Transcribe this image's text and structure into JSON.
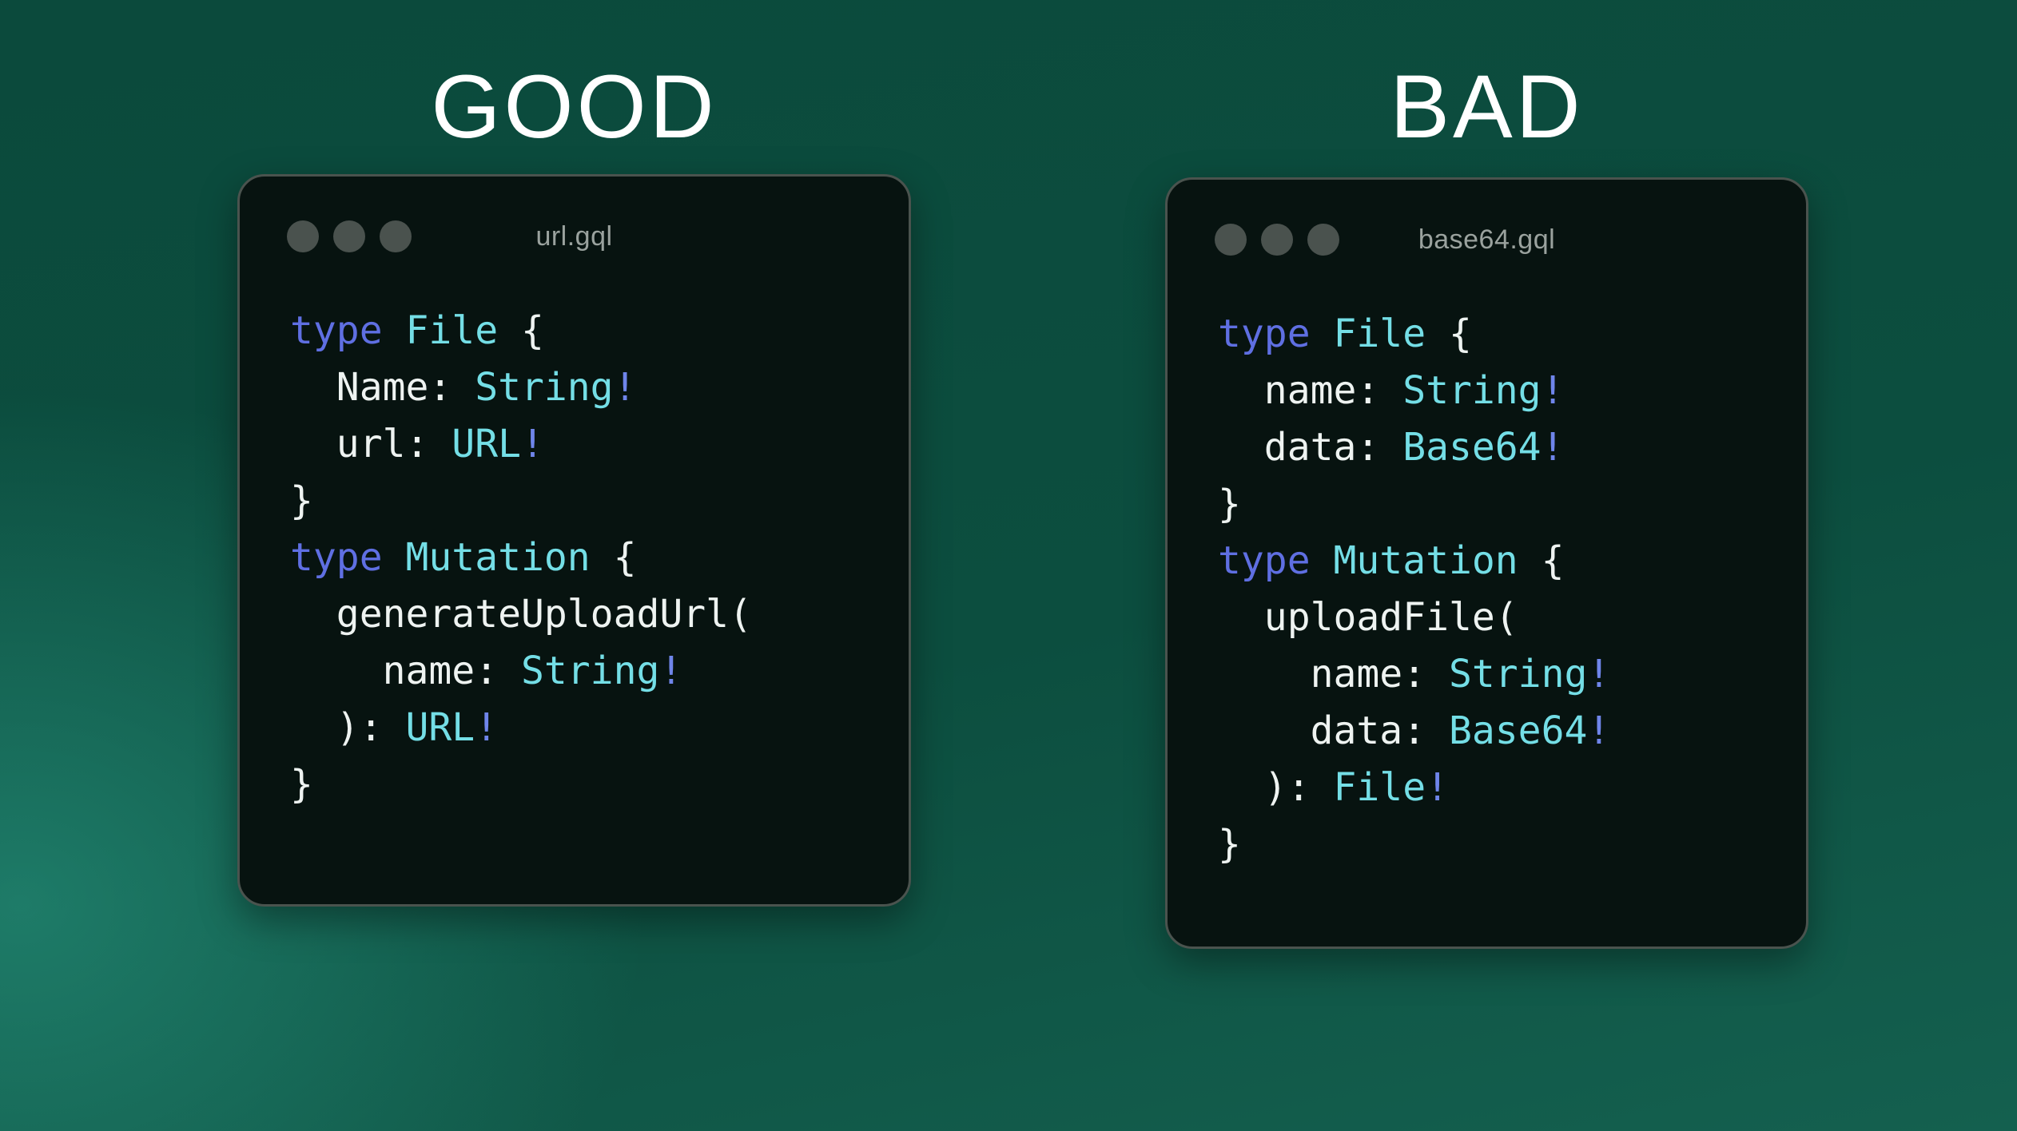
{
  "colors": {
    "bg_base": "#0b4a3c",
    "bg_glow": "#2ca089",
    "heading": "#ffffff",
    "window_bg": "#071310",
    "window_border": "#4a534e",
    "dot": "#4a524e",
    "title": "#9aa29e",
    "plain": "#eef3f1",
    "keyword": "#5f6fe2",
    "typename": "#74dee6",
    "bang": "#6f85ea"
  },
  "panels": [
    {
      "label": "GOOD",
      "window": {
        "title": "url.gql",
        "code": [
          [
            {
              "t": "type",
              "c": "kw"
            },
            {
              "t": " ",
              "c": "pl"
            },
            {
              "t": "File",
              "c": "ty"
            },
            {
              "t": " {",
              "c": "pl"
            }
          ],
          [
            {
              "t": "  Name: ",
              "c": "pl"
            },
            {
              "t": "String",
              "c": "ty"
            },
            {
              "t": "!",
              "c": "bg"
            }
          ],
          [
            {
              "t": "  url: ",
              "c": "pl"
            },
            {
              "t": "URL",
              "c": "ty"
            },
            {
              "t": "!",
              "c": "bg"
            }
          ],
          [
            {
              "t": "}",
              "c": "pl"
            }
          ],
          [
            {
              "t": "type",
              "c": "kw"
            },
            {
              "t": " ",
              "c": "pl"
            },
            {
              "t": "Mutation",
              "c": "ty"
            },
            {
              "t": " {",
              "c": "pl"
            }
          ],
          [
            {
              "t": "  generateUploadUrl(",
              "c": "pl"
            }
          ],
          [
            {
              "t": "    name: ",
              "c": "pl"
            },
            {
              "t": "String",
              "c": "ty"
            },
            {
              "t": "!",
              "c": "bg"
            }
          ],
          [
            {
              "t": "  ): ",
              "c": "pl"
            },
            {
              "t": "URL",
              "c": "ty"
            },
            {
              "t": "!",
              "c": "bg"
            }
          ],
          [
            {
              "t": "}",
              "c": "pl"
            }
          ]
        ]
      }
    },
    {
      "label": "BAD",
      "window": {
        "title": "base64.gql",
        "code": [
          [
            {
              "t": "type",
              "c": "kw"
            },
            {
              "t": " ",
              "c": "pl"
            },
            {
              "t": "File",
              "c": "ty"
            },
            {
              "t": " {",
              "c": "pl"
            }
          ],
          [
            {
              "t": "  name: ",
              "c": "pl"
            },
            {
              "t": "String",
              "c": "ty"
            },
            {
              "t": "!",
              "c": "bg"
            }
          ],
          [
            {
              "t": "  data: ",
              "c": "pl"
            },
            {
              "t": "Base64",
              "c": "ty"
            },
            {
              "t": "!",
              "c": "bg"
            }
          ],
          [
            {
              "t": "}",
              "c": "pl"
            }
          ],
          [
            {
              "t": "type",
              "c": "kw"
            },
            {
              "t": " ",
              "c": "pl"
            },
            {
              "t": "Mutation",
              "c": "ty"
            },
            {
              "t": " {",
              "c": "pl"
            }
          ],
          [
            {
              "t": "  uploadFile(",
              "c": "pl"
            }
          ],
          [
            {
              "t": "    name: ",
              "c": "pl"
            },
            {
              "t": "String",
              "c": "ty"
            },
            {
              "t": "!",
              "c": "bg"
            }
          ],
          [
            {
              "t": "    data: ",
              "c": "pl"
            },
            {
              "t": "Base64",
              "c": "ty"
            },
            {
              "t": "!",
              "c": "bg"
            }
          ],
          [
            {
              "t": "  ): ",
              "c": "pl"
            },
            {
              "t": "File",
              "c": "ty"
            },
            {
              "t": "!",
              "c": "bg"
            }
          ],
          [
            {
              "t": "}",
              "c": "pl"
            }
          ]
        ]
      }
    }
  ]
}
